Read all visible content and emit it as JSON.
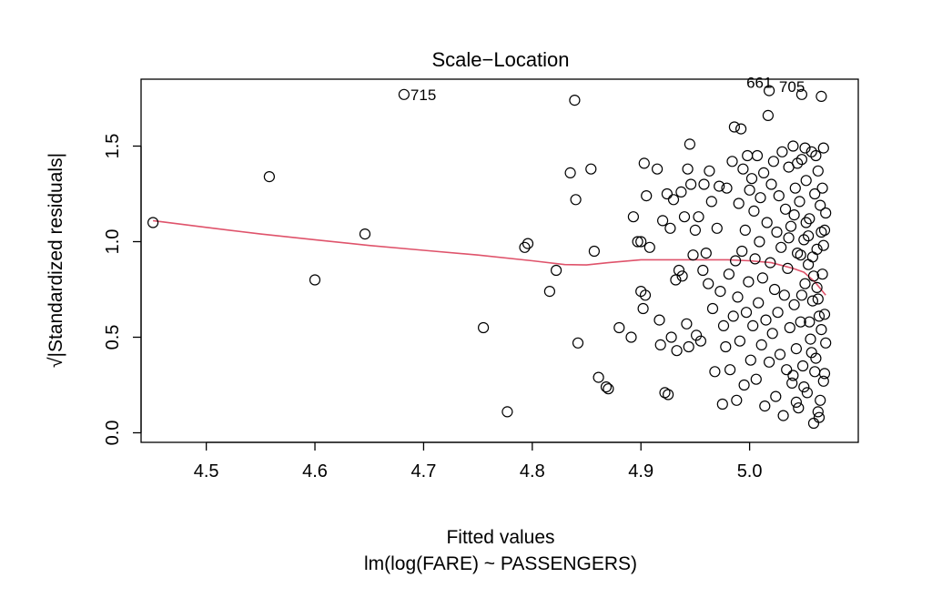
{
  "chart_data": {
    "type": "scatter",
    "title": "Scale−Location",
    "xlabel": "Fitted values",
    "subtitle": "lm(log(FARE) ~ PASSENGERS)",
    "ylabel": "√|Standardized residuals|",
    "xlim": [
      4.44,
      5.1
    ],
    "ylim": [
      -0.05,
      1.85
    ],
    "x_ticks": [
      4.5,
      4.6,
      4.7,
      4.8,
      4.9,
      5.0
    ],
    "x_tick_labels": [
      "4.5",
      "4.6",
      "4.7",
      "4.8",
      "4.9",
      "5.0"
    ],
    "y_ticks": [
      0.0,
      0.5,
      1.0,
      1.5
    ],
    "y_tick_labels": [
      "0.0",
      "0.5",
      "1.0",
      "1.5"
    ],
    "grid": false,
    "point_color": "#000000",
    "smooth_color": "#DF536B",
    "points": [
      [
        4.451,
        1.1
      ],
      [
        4.558,
        1.34
      ],
      [
        4.6,
        0.8
      ],
      [
        4.646,
        1.04
      ],
      [
        4.682,
        1.77
      ],
      [
        4.755,
        0.55
      ],
      [
        4.777,
        0.11
      ],
      [
        4.793,
        0.97
      ],
      [
        4.796,
        0.99
      ],
      [
        4.816,
        0.74
      ],
      [
        4.822,
        0.85
      ],
      [
        4.835,
        1.36
      ],
      [
        4.839,
        1.74
      ],
      [
        4.84,
        1.22
      ],
      [
        4.842,
        0.47
      ],
      [
        4.854,
        1.38
      ],
      [
        4.857,
        0.95
      ],
      [
        4.861,
        0.29
      ],
      [
        4.868,
        0.24
      ],
      [
        4.87,
        0.23
      ],
      [
        4.88,
        0.55
      ],
      [
        4.891,
        0.5
      ],
      [
        4.893,
        1.13
      ],
      [
        4.897,
        1.0
      ],
      [
        4.9,
        0.74
      ],
      [
        4.9,
        1.0
      ],
      [
        4.902,
        0.65
      ],
      [
        4.903,
        1.41
      ],
      [
        4.904,
        0.72
      ],
      [
        4.905,
        1.24
      ],
      [
        4.908,
        0.97
      ],
      [
        4.915,
        1.38
      ],
      [
        4.917,
        0.59
      ],
      [
        4.918,
        0.46
      ],
      [
        4.92,
        1.11
      ],
      [
        4.922,
        0.21
      ],
      [
        4.924,
        1.25
      ],
      [
        4.925,
        0.2
      ],
      [
        4.927,
        1.07
      ],
      [
        4.928,
        0.5
      ],
      [
        4.93,
        1.22
      ],
      [
        4.932,
        0.8
      ],
      [
        4.933,
        0.43
      ],
      [
        4.935,
        0.85
      ],
      [
        4.937,
        1.26
      ],
      [
        4.938,
        0.82
      ],
      [
        4.94,
        1.13
      ],
      [
        4.942,
        0.57
      ],
      [
        4.943,
        1.38
      ],
      [
        4.944,
        0.45
      ],
      [
        4.945,
        1.51
      ],
      [
        4.946,
        1.3
      ],
      [
        4.948,
        0.93
      ],
      [
        4.95,
        1.06
      ],
      [
        4.951,
        0.51
      ],
      [
        4.953,
        1.13
      ],
      [
        4.955,
        0.48
      ],
      [
        4.957,
        0.85
      ],
      [
        4.958,
        1.3
      ],
      [
        4.96,
        0.94
      ],
      [
        4.962,
        0.78
      ],
      [
        4.963,
        1.37
      ],
      [
        4.965,
        1.21
      ],
      [
        4.966,
        0.65
      ],
      [
        4.968,
        0.32
      ],
      [
        4.97,
        1.07
      ],
      [
        4.972,
        1.29
      ],
      [
        4.973,
        0.74
      ],
      [
        4.975,
        0.15
      ],
      [
        4.976,
        0.56
      ],
      [
        4.978,
        0.45
      ],
      [
        4.979,
        1.28
      ],
      [
        4.981,
        0.83
      ],
      [
        4.982,
        0.33
      ],
      [
        4.984,
        1.42
      ],
      [
        4.985,
        0.61
      ],
      [
        4.986,
        1.6
      ],
      [
        4.987,
        0.9
      ],
      [
        4.988,
        0.17
      ],
      [
        4.989,
        0.71
      ],
      [
        4.99,
        1.2
      ],
      [
        4.991,
        0.48
      ],
      [
        4.992,
        1.59
      ],
      [
        4.993,
        0.95
      ],
      [
        4.994,
        1.38
      ],
      [
        4.995,
        0.25
      ],
      [
        4.996,
        1.06
      ],
      [
        4.997,
        0.63
      ],
      [
        4.998,
        1.45
      ],
      [
        4.999,
        0.79
      ],
      [
        5.0,
        1.27
      ],
      [
        5.001,
        0.38
      ],
      [
        5.002,
        1.33
      ],
      [
        5.003,
        0.56
      ],
      [
        5.004,
        1.16
      ],
      [
        5.005,
        0.91
      ],
      [
        5.006,
        0.28
      ],
      [
        5.007,
        1.45
      ],
      [
        5.008,
        0.68
      ],
      [
        5.009,
        1.0
      ],
      [
        5.01,
        1.23
      ],
      [
        5.011,
        0.46
      ],
      [
        5.012,
        0.81
      ],
      [
        5.013,
        1.36
      ],
      [
        5.014,
        0.14
      ],
      [
        5.015,
        0.59
      ],
      [
        5.016,
        1.1
      ],
      [
        5.017,
        1.66
      ],
      [
        5.018,
        0.37
      ],
      [
        5.019,
        0.89
      ],
      [
        5.02,
        1.3
      ],
      [
        5.021,
        0.52
      ],
      [
        5.022,
        1.42
      ],
      [
        5.023,
        0.75
      ],
      [
        5.024,
        0.19
      ],
      [
        5.025,
        1.05
      ],
      [
        5.026,
        0.63
      ],
      [
        5.027,
        1.24
      ],
      [
        5.028,
        0.41
      ],
      [
        5.029,
        0.97
      ],
      [
        5.03,
        1.47
      ],
      [
        5.031,
        0.09
      ],
      [
        5.032,
        0.72
      ],
      [
        5.033,
        1.17
      ],
      [
        5.034,
        0.33
      ],
      [
        5.035,
        0.86
      ],
      [
        5.036,
        1.39
      ],
      [
        5.037,
        0.55
      ],
      [
        5.038,
        1.08
      ],
      [
        5.039,
        0.26
      ],
      [
        5.04,
        1.5
      ],
      [
        5.041,
        0.67
      ],
      [
        5.042,
        1.28
      ],
      [
        5.043,
        0.44
      ],
      [
        5.044,
        0.94
      ],
      [
        5.045,
        0.13
      ],
      [
        5.046,
        1.21
      ],
      [
        5.047,
        0.58
      ],
      [
        5.048,
        1.43
      ],
      [
        5.049,
        0.35
      ],
      [
        5.05,
        1.01
      ],
      [
        5.051,
        0.78
      ],
      [
        5.052,
        1.32
      ],
      [
        5.053,
        0.21
      ],
      [
        5.054,
        0.88
      ],
      [
        5.055,
        1.12
      ],
      [
        5.056,
        0.49
      ],
      [
        5.057,
        1.47
      ],
      [
        5.058,
        0.69
      ],
      [
        5.059,
        0.05
      ],
      [
        5.06,
        1.25
      ],
      [
        5.061,
        0.39
      ],
      [
        5.062,
        0.96
      ],
      [
        5.063,
        1.37
      ],
      [
        5.064,
        0.61
      ],
      [
        5.065,
        0.17
      ],
      [
        5.066,
        1.05
      ],
      [
        5.067,
        0.83
      ],
      [
        5.068,
        1.49
      ],
      [
        5.069,
        0.31
      ],
      [
        5.07,
        1.15
      ],
      [
        5.054,
        1.03
      ],
      [
        5.058,
        0.92
      ],
      [
        5.062,
        0.76
      ],
      [
        5.066,
        0.54
      ],
      [
        5.068,
        0.27
      ],
      [
        5.063,
        0.11
      ],
      [
        5.061,
        1.45
      ],
      [
        5.064,
        0.08
      ],
      [
        5.069,
        0.62
      ],
      [
        5.052,
        1.1
      ],
      [
        5.048,
        0.72
      ],
      [
        5.044,
        1.41
      ],
      [
        5.04,
        0.3
      ],
      [
        5.036,
        1.02
      ],
      [
        5.043,
        0.16
      ],
      [
        5.057,
        0.42
      ],
      [
        5.059,
        0.82
      ],
      [
        5.067,
        1.28
      ],
      [
        5.07,
        0.47
      ],
      [
        5.055,
        0.58
      ],
      [
        5.065,
        1.19
      ],
      [
        5.051,
        1.49
      ],
      [
        5.047,
        0.93
      ],
      [
        5.041,
        1.14
      ],
      [
        5.06,
        0.32
      ],
      [
        5.068,
        0.98
      ],
      [
        5.05,
        0.24
      ],
      [
        5.063,
        0.7
      ],
      [
        5.069,
        1.06
      ],
      [
        5.018,
        1.79
      ],
      [
        5.048,
        1.77
      ],
      [
        5.066,
        1.76
      ]
    ],
    "smooth_line": [
      [
        4.451,
        1.11
      ],
      [
        4.5,
        1.075
      ],
      [
        4.55,
        1.04
      ],
      [
        4.6,
        1.01
      ],
      [
        4.65,
        0.98
      ],
      [
        4.7,
        0.955
      ],
      [
        4.75,
        0.93
      ],
      [
        4.8,
        0.9
      ],
      [
        4.83,
        0.88
      ],
      [
        4.85,
        0.878
      ],
      [
        4.87,
        0.89
      ],
      [
        4.9,
        0.905
      ],
      [
        4.95,
        0.905
      ],
      [
        4.98,
        0.905
      ],
      [
        5.0,
        0.9
      ],
      [
        5.02,
        0.89
      ],
      [
        5.04,
        0.86
      ],
      [
        5.05,
        0.84
      ],
      [
        5.06,
        0.79
      ],
      [
        5.07,
        0.72
      ]
    ],
    "annotations": [
      {
        "text": "715",
        "x": 4.682,
        "y": 1.77,
        "anchor": "right"
      },
      {
        "text": "661",
        "x": 5.018,
        "y": 1.79,
        "anchor": "left"
      },
      {
        "text": "705",
        "x": 5.048,
        "y": 1.77,
        "anchor": "left"
      }
    ]
  }
}
